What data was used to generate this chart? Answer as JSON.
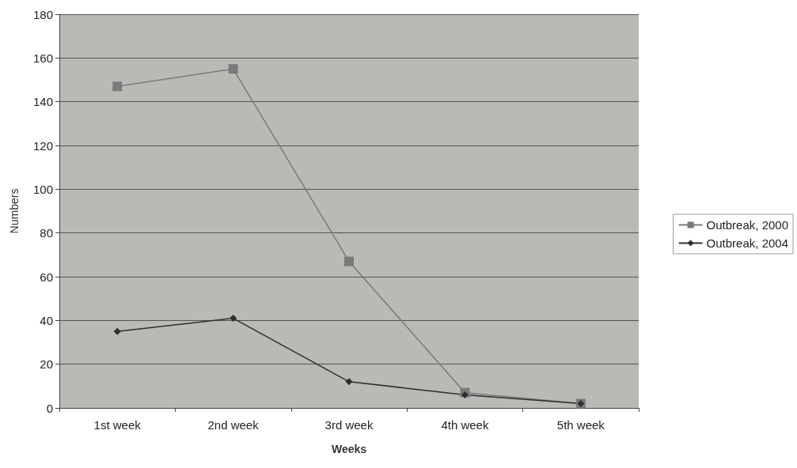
{
  "chart_data": {
    "type": "line",
    "xlabel": "Weeks",
    "ylabel": "Numbers",
    "categories": [
      "1st week",
      "2nd week",
      "3rd week",
      "4th week",
      "5th week"
    ],
    "series": [
      {
        "name": "Outbreak, 2000",
        "color": "#7a7a7a",
        "values": [
          147,
          155,
          67,
          7,
          2
        ],
        "marker": "square"
      },
      {
        "name": "Outbreak, 2004",
        "color": "#2e2e2e",
        "values": [
          35,
          41,
          12,
          6,
          2
        ],
        "marker": "diamond"
      }
    ],
    "ylim": [
      0,
      180
    ],
    "yticks": [
      0,
      20,
      40,
      60,
      80,
      100,
      120,
      140,
      160,
      180
    ],
    "grid": "y",
    "legend": "right"
  }
}
